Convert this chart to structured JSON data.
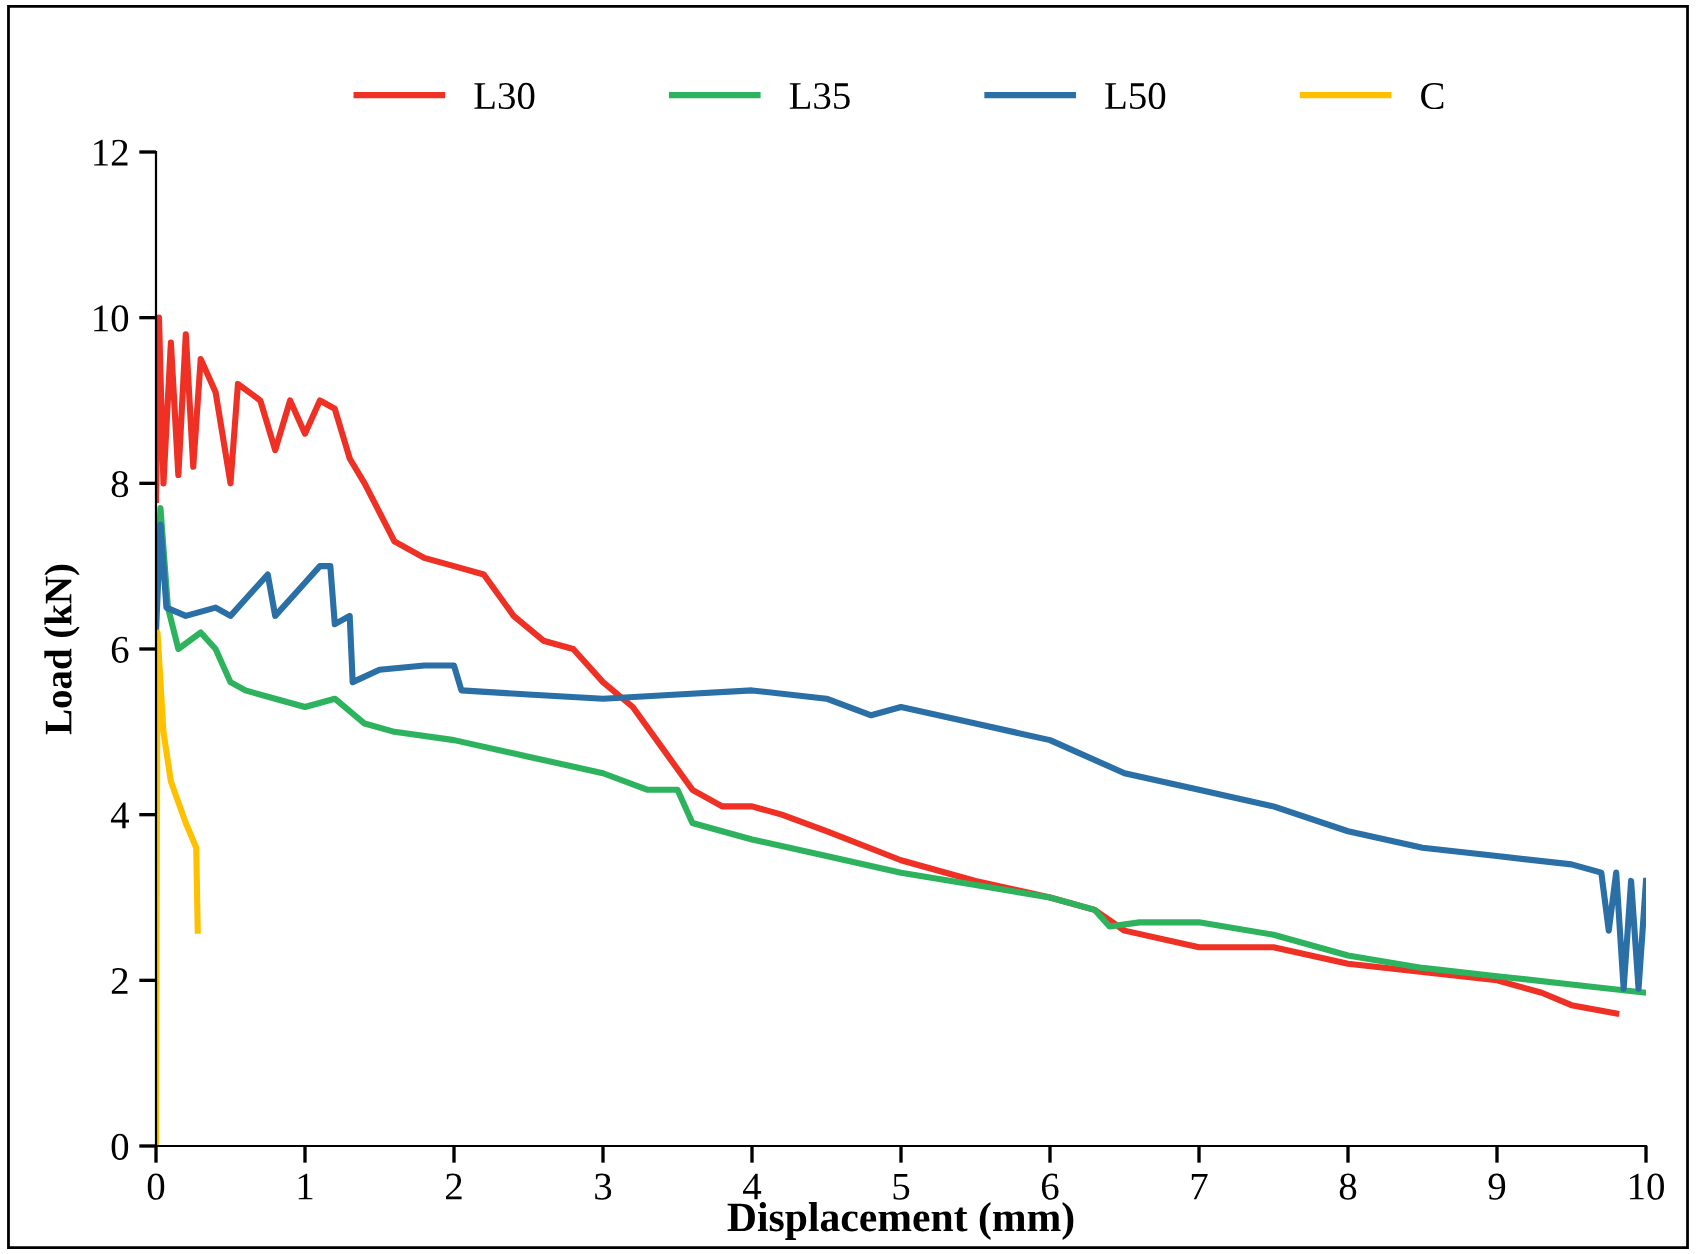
{
  "chart_data": {
    "type": "line",
    "xlabel": "Displacement (mm)",
    "ylabel": "Load (kN)",
    "xlim": [
      0,
      10
    ],
    "ylim": [
      0,
      12
    ],
    "xticks": [
      0,
      1,
      2,
      3,
      4,
      5,
      6,
      7,
      8,
      9,
      10
    ],
    "yticks": [
      0,
      2,
      4,
      6,
      8,
      10,
      12
    ],
    "grid": false,
    "legend": "top",
    "marker": "none",
    "line_style": "solid",
    "series": [
      {
        "name": "L30",
        "color": "#ee3124",
        "x": [
          0,
          0.02,
          0.05,
          0.1,
          0.15,
          0.2,
          0.25,
          0.3,
          0.4,
          0.5,
          0.55,
          0.7,
          0.8,
          0.9,
          1.0,
          1.1,
          1.2,
          1.3,
          1.4,
          1.6,
          1.8,
          2.0,
          2.2,
          2.4,
          2.6,
          2.8,
          3.0,
          3.2,
          3.4,
          3.6,
          3.8,
          4.0,
          4.2,
          4.5,
          5.0,
          5.5,
          6.0,
          6.3,
          6.5,
          7.0,
          7.5,
          8.0,
          8.5,
          9.0,
          9.3,
          9.5,
          9.8
        ],
        "values": [
          7.8,
          10,
          8,
          9.7,
          8.1,
          9.8,
          8.2,
          9.5,
          9.1,
          8.0,
          9.2,
          9.0,
          8.4,
          9.0,
          8.6,
          9.0,
          8.9,
          8.3,
          8.0,
          7.3,
          7.1,
          7.0,
          6.9,
          6.4,
          6.1,
          6.0,
          5.6,
          5.3,
          4.8,
          4.3,
          4.1,
          4.1,
          4.0,
          3.8,
          3.45,
          3.2,
          3.0,
          2.85,
          2.6,
          2.4,
          2.4,
          2.2,
          2.1,
          2.0,
          1.85,
          1.7,
          1.6
        ]
      },
      {
        "name": "L35",
        "color": "#2db35d",
        "x": [
          0,
          0.03,
          0.08,
          0.15,
          0.3,
          0.4,
          0.5,
          0.6,
          0.8,
          1.0,
          1.2,
          1.4,
          1.6,
          2.0,
          2.5,
          3.0,
          3.3,
          3.5,
          3.6,
          4.0,
          4.5,
          5.0,
          5.5,
          6.0,
          6.3,
          6.4,
          6.6,
          7.0,
          7.5,
          8.0,
          8.5,
          9.0,
          9.5,
          10.0
        ],
        "values": [
          6.5,
          7.7,
          6.5,
          6.0,
          6.2,
          6.0,
          5.6,
          5.5,
          5.4,
          5.3,
          5.4,
          5.1,
          5.0,
          4.9,
          4.7,
          4.5,
          4.3,
          4.3,
          3.9,
          3.7,
          3.5,
          3.3,
          3.15,
          3.0,
          2.85,
          2.65,
          2.7,
          2.7,
          2.55,
          2.3,
          2.15,
          2.05,
          1.95,
          1.85
        ]
      },
      {
        "name": "L50",
        "color": "#2a6fa5",
        "x": [
          0,
          0.03,
          0.07,
          0.2,
          0.4,
          0.5,
          0.6,
          0.75,
          0.8,
          1.0,
          1.1,
          1.17,
          1.2,
          1.3,
          1.32,
          1.5,
          1.8,
          2.0,
          2.05,
          2.5,
          3.0,
          3.5,
          4.0,
          4.5,
          4.8,
          5.0,
          5.5,
          6.0,
          6.5,
          7.0,
          7.5,
          8.0,
          8.5,
          9.0,
          9.5,
          9.7,
          9.75,
          9.8,
          9.85,
          9.9,
          9.95,
          10.0
        ],
        "values": [
          6.2,
          7.5,
          6.5,
          6.4,
          6.5,
          6.4,
          6.6,
          6.9,
          6.4,
          6.8,
          7.0,
          7.0,
          6.3,
          6.4,
          5.6,
          5.75,
          5.8,
          5.8,
          5.5,
          5.45,
          5.4,
          5.45,
          5.5,
          5.4,
          5.2,
          5.3,
          5.1,
          4.9,
          4.5,
          4.3,
          4.1,
          3.8,
          3.6,
          3.5,
          3.4,
          3.3,
          2.6,
          3.3,
          1.9,
          3.2,
          1.9,
          3.2
        ]
      },
      {
        "name": "C",
        "color": "#ffc000",
        "x": [
          0,
          0.01,
          0.05,
          0.1,
          0.2,
          0.27,
          0.28
        ],
        "values": [
          0,
          6.2,
          5.0,
          4.4,
          3.9,
          3.6,
          2.6
        ]
      }
    ]
  }
}
